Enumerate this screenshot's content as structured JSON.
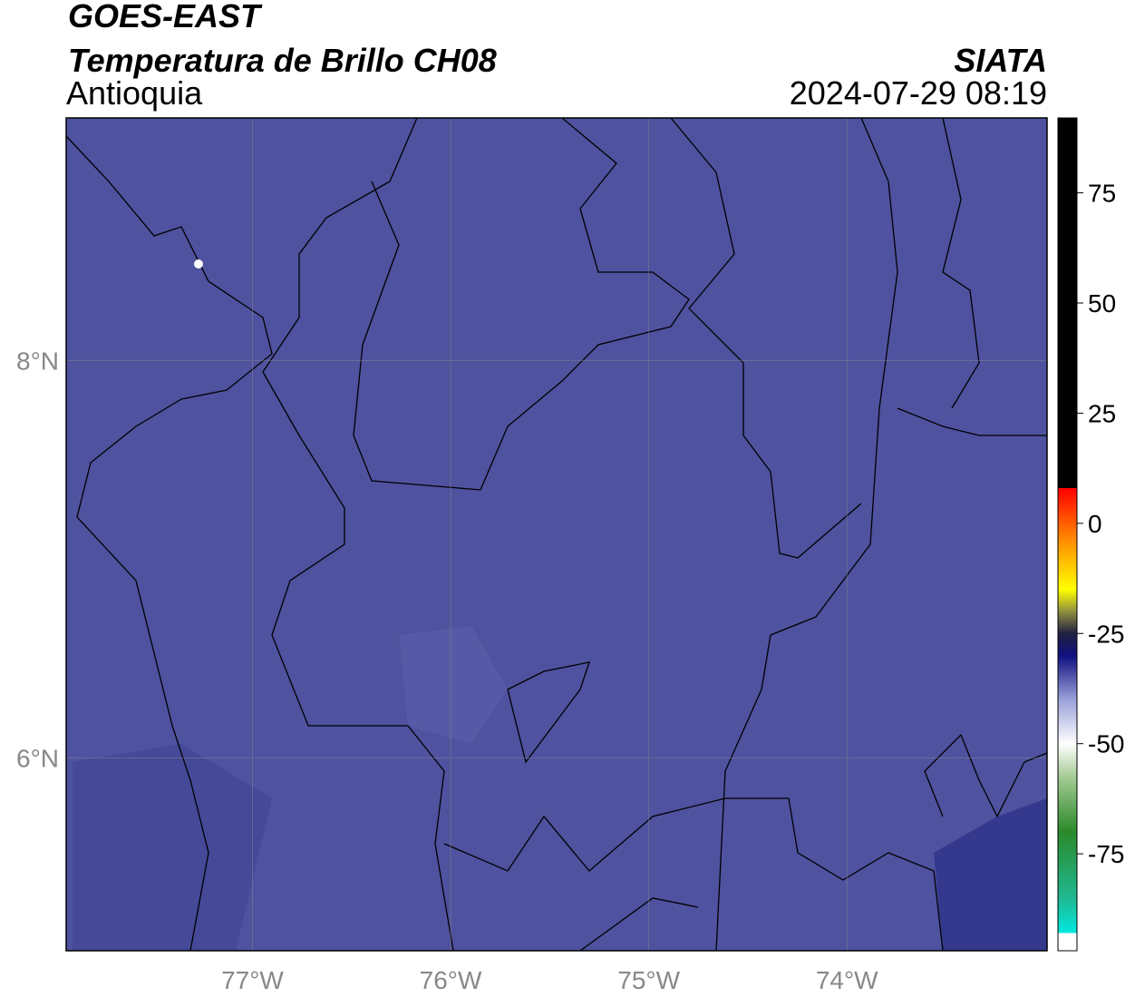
{
  "header": {
    "title": "GOES-EAST",
    "subtitle": "Temperatura de Brillo CH08",
    "region": "Antioquia",
    "agency": "SIATA",
    "timestamp": "2024-07-29 08:19"
  },
  "map": {
    "fill": "#4e529f",
    "grid": true,
    "xlim": [
      -77.94,
      -72.99
    ],
    "ylim": [
      5.03,
      9.22
    ],
    "xticks": [
      {
        "value": -77,
        "label": "77°W"
      },
      {
        "value": -76,
        "label": "76°W"
      },
      {
        "value": -75,
        "label": "75°W"
      },
      {
        "value": -74,
        "label": "74°W"
      }
    ],
    "yticks": [
      {
        "value": 8,
        "label": "8°N"
      },
      {
        "value": 6,
        "label": "6°N"
      }
    ]
  },
  "colorbar": {
    "lim": [
      -97,
      92
    ],
    "ticks": [
      75,
      50,
      25,
      0,
      -25,
      -50,
      -75
    ],
    "stops": [
      [
        -97,
        "#ffffff"
      ],
      [
        -93,
        "#ffffff"
      ],
      [
        -93,
        "#00e8e0"
      ],
      [
        -85,
        "#20b890"
      ],
      [
        -70,
        "#2a8a2a"
      ],
      [
        -58,
        "#a0c890"
      ],
      [
        -50,
        "#ffffff"
      ],
      [
        -40,
        "#9aa0d8"
      ],
      [
        -30,
        "#101080"
      ],
      [
        -25,
        "#202040"
      ],
      [
        -20,
        "#909040"
      ],
      [
        -15,
        "#ffff00"
      ],
      [
        -5,
        "#ff9900"
      ],
      [
        8,
        "#ff0000"
      ],
      [
        8,
        "#000000"
      ],
      [
        92,
        "#000000"
      ]
    ]
  }
}
